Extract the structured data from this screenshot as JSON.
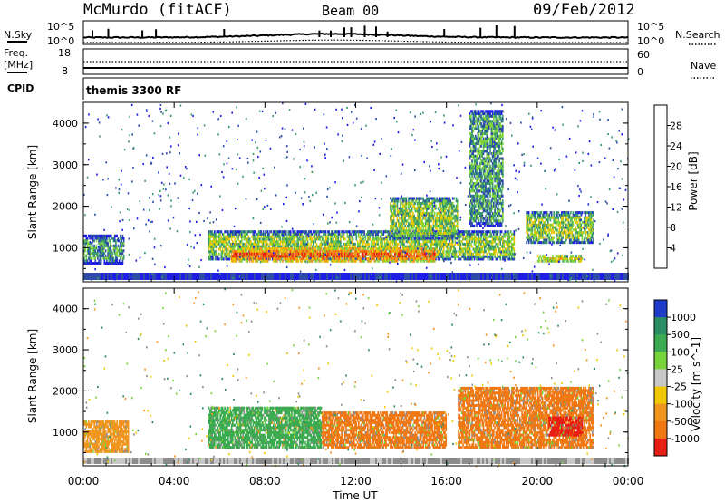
{
  "header": {
    "station": "McMurdo (fitACF)",
    "beam": "Beam 00",
    "date": "09/Feb/2012"
  },
  "top_panels": {
    "nsky_label": "N.Sky",
    "nsky_ticks": [
      "10^5",
      "10^0"
    ],
    "nsearch_label": "N.Search",
    "nsearch_ticks": [
      "10^5",
      "10^0"
    ],
    "freq_label_1": "Freq.",
    "freq_label_2": "[MHz]",
    "freq_ticks": [
      "18",
      "8"
    ],
    "nave_label": "Nave",
    "nave_ticks": [
      "60",
      "0"
    ],
    "cpid_label": "CPID",
    "cpid_value": "themis 3300 RF"
  },
  "chart_data": [
    {
      "type": "heatmap",
      "title": "",
      "ylabel": "Slant Range [km]",
      "ylim": [
        180,
        4500
      ],
      "yticks": [
        "1000",
        "2000",
        "3000",
        "4000"
      ],
      "xlim": [
        "00:00",
        "24:00"
      ],
      "colorbar_label": "Power [dB]",
      "colorbar_ticks": [
        "4",
        "8",
        "12",
        "16",
        "20",
        "24",
        "28"
      ],
      "colorbar_colors": [
        "#1e1ee6",
        "#2c4ca8",
        "#3a9a6e",
        "#7ed23c",
        "#e8c800",
        "#f0961e",
        "#f56414",
        "#e61e0a"
      ],
      "regions": [
        {
          "t": [
            0.0,
            1.8
          ],
          "r": [
            600,
            1300
          ],
          "level": 2
        },
        {
          "t": [
            5.5,
            19.0
          ],
          "r": [
            700,
            1400
          ],
          "level": 3
        },
        {
          "t": [
            6.5,
            15.5
          ],
          "r": [
            650,
            1000
          ],
          "level": 6
        },
        {
          "t": [
            13.5,
            16.5
          ],
          "r": [
            1200,
            2200
          ],
          "level": 3
        },
        {
          "t": [
            17.0,
            18.5
          ],
          "r": [
            1500,
            4300
          ],
          "level": 2
        },
        {
          "t": [
            19.5,
            22.5
          ],
          "r": [
            1100,
            1900
          ],
          "level": 3
        },
        {
          "t": [
            20.0,
            22.0
          ],
          "r": [
            650,
            850
          ],
          "level": 5
        }
      ]
    },
    {
      "type": "heatmap",
      "title": "",
      "xlabel": "Time UT",
      "ylabel": "Slant Range [km]",
      "ylim": [
        180,
        4500
      ],
      "yticks": [
        "1000",
        "2000",
        "3000",
        "4000"
      ],
      "xticks": [
        "00:00",
        "04:00",
        "08:00",
        "12:00",
        "16:00",
        "20:00",
        "00:00"
      ],
      "colorbar_label": "Velocity [m s^-1]",
      "colorbar_ticks": [
        "1000",
        "500",
        "100",
        "25",
        "-25",
        "-100",
        "-500",
        "-1000"
      ],
      "colorbar_colors": [
        "#1e3cc8",
        "#2c8c64",
        "#3caa50",
        "#78d23c",
        "#c8c8c8",
        "#f0c800",
        "#f0961e",
        "#f07814",
        "#e61e14"
      ],
      "regions": [
        {
          "t": [
            0.0,
            2.0
          ],
          "r": [
            500,
            1300
          ],
          "velocity": "-100"
        },
        {
          "t": [
            5.5,
            10.5
          ],
          "r": [
            600,
            1600
          ],
          "velocity": "500"
        },
        {
          "t": [
            10.5,
            16.0
          ],
          "r": [
            600,
            1500
          ],
          "velocity": "-500"
        },
        {
          "t": [
            16.5,
            22.5
          ],
          "r": [
            600,
            2100
          ],
          "velocity": "-500"
        },
        {
          "t": [
            20.5,
            22.0
          ],
          "r": [
            900,
            1400
          ],
          "velocity": "-1000"
        }
      ]
    }
  ],
  "colors": {
    "background": "#ffffff",
    "ground_scatter": "#8c8c8c"
  }
}
